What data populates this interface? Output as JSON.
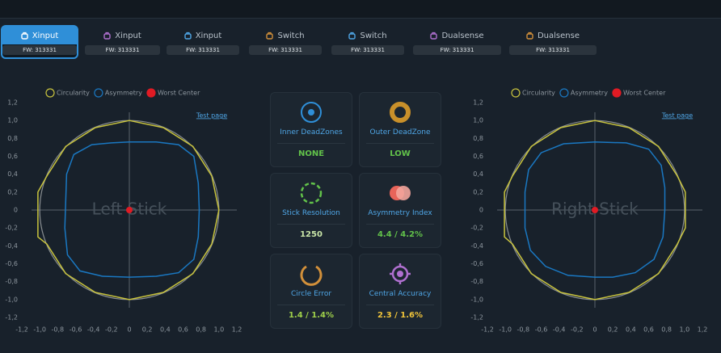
{
  "tabs": [
    {
      "label": "Xinput",
      "fw": "FW: 313331",
      "active": true
    },
    {
      "label": "Xinput",
      "fw": "FW: 313331",
      "active": false
    },
    {
      "label": "Xinput",
      "fw": "FW: 313331",
      "active": false
    },
    {
      "label": "Switch",
      "fw": "FW: 313331",
      "active": false
    },
    {
      "label": "Switch",
      "fw": "FW: 313331",
      "active": false
    },
    {
      "label": "Dualsense",
      "fw": "FW: 313331",
      "active": false
    },
    {
      "label": "Dualsense",
      "fw": "FW: 313331",
      "active": false
    }
  ],
  "cards": [
    {
      "title": "Inner DeadZones",
      "value": "NONE",
      "color": "#62c24a"
    },
    {
      "title": "Outer DeadZone",
      "value": "LOW",
      "color": "#62c24a"
    },
    {
      "title": "Stick Resolution",
      "value": "1250",
      "color": "#c9e6a8"
    },
    {
      "title": "Asymmetry Index",
      "value": "4.4 / 4.2%",
      "color": "#62c24a"
    },
    {
      "title": "Circle Error",
      "value": "1.4 / 1.4%",
      "color": "#9fd04a"
    },
    {
      "title": "Central Accuracy",
      "value": "2.3 / 1.6%",
      "color": "#f0c43a"
    }
  ],
  "chart_data": [
    {
      "type": "line",
      "watermark": "Left Stick",
      "link": "Test page",
      "reference_radius": 1,
      "xlim": [
        -1.2,
        1.2
      ],
      "ylim": [
        -1.2,
        1.2
      ],
      "xticks": [
        {
          "value": -1.2,
          "label": "-1,2"
        },
        {
          "value": -1.0,
          "label": "-1,0"
        },
        {
          "value": -0.8,
          "label": "-0,8"
        },
        {
          "value": -0.6,
          "label": "-0,6"
        },
        {
          "value": -0.4,
          "label": "-0,4"
        },
        {
          "value": -0.2,
          "label": "-0,2"
        },
        0,
        {
          "value": 0.2,
          "label": "0,2"
        },
        {
          "value": 0.4,
          "label": "0,4"
        },
        {
          "value": 0.6,
          "label": "0,6"
        },
        {
          "value": 0.8,
          "label": "0,8"
        },
        {
          "value": 1.0,
          "label": "1,0"
        },
        {
          "value": 1.2,
          "label": "1,2"
        }
      ],
      "yticks": [
        {
          "value": -1.2,
          "label": "-1,2"
        },
        {
          "value": -1.0,
          "label": "-1,0"
        },
        {
          "value": -0.8,
          "label": "-0,8"
        },
        {
          "value": -0.6,
          "label": "-0,6"
        },
        {
          "value": -0.4,
          "label": "-0,4"
        },
        {
          "value": -0.2,
          "label": "-0,2"
        },
        0,
        {
          "value": 0.2,
          "label": "0,2"
        },
        {
          "value": 0.4,
          "label": "0,4"
        },
        {
          "value": 0.6,
          "label": "0,6"
        },
        {
          "value": 0.8,
          "label": "0,8"
        },
        {
          "value": 1.0,
          "label": "1,0"
        },
        {
          "value": 1.2,
          "label": "1,2"
        }
      ],
      "series": [
        {
          "name": "Circularity",
          "color": "#c9c43e",
          "kind": "line",
          "x": [
            0,
            0.38,
            0.71,
            0.92,
            1.0,
            0.92,
            0.71,
            0.38,
            0,
            -0.38,
            -0.71,
            -0.92,
            -1.02,
            -1.02,
            -0.92,
            -0.71,
            -0.38,
            0
          ],
          "values": [
            1,
            0.92,
            0.71,
            0.38,
            0,
            -0.38,
            -0.71,
            -0.92,
            -1,
            -0.92,
            -0.71,
            -0.38,
            -0.3,
            0.2,
            0.38,
            0.71,
            0.92,
            1
          ]
        },
        {
          "name": "Asymmetry",
          "color": "#1a78c2",
          "kind": "line",
          "x": [
            0,
            0.3,
            0.55,
            0.72,
            0.77,
            0.78,
            0.77,
            0.72,
            0.55,
            0.3,
            0,
            -0.3,
            -0.55,
            -0.69,
            -0.72,
            -0.71,
            -0.7,
            -0.62,
            -0.42,
            -0.2,
            0
          ],
          "values": [
            0.76,
            0.76,
            0.73,
            0.6,
            0.3,
            0,
            -0.3,
            -0.55,
            -0.7,
            -0.74,
            -0.75,
            -0.74,
            -0.68,
            -0.5,
            -0.2,
            0.1,
            0.4,
            0.62,
            0.73,
            0.75,
            0.76
          ]
        },
        {
          "name": "Worst Center",
          "color": "#e01b24",
          "kind": "point",
          "x": [
            0
          ],
          "values": [
            0
          ]
        }
      ]
    },
    {
      "type": "line",
      "watermark": "Right Stick",
      "link": "Test page",
      "reference_radius": 1,
      "xlim": [
        -1.2,
        1.2
      ],
      "ylim": [
        -1.2,
        1.2
      ],
      "xticks": [
        {
          "value": -1.2,
          "label": "-1,2"
        },
        {
          "value": -1.0,
          "label": "-1,0"
        },
        {
          "value": -0.8,
          "label": "-0,8"
        },
        {
          "value": -0.6,
          "label": "-0,6"
        },
        {
          "value": -0.4,
          "label": "-0,4"
        },
        {
          "value": -0.2,
          "label": "-0,2"
        },
        0,
        {
          "value": 0.2,
          "label": "0,2"
        },
        {
          "value": 0.4,
          "label": "0,4"
        },
        {
          "value": 0.6,
          "label": "0,6"
        },
        {
          "value": 0.8,
          "label": "0,8"
        },
        {
          "value": 1.0,
          "label": "1,0"
        },
        {
          "value": 1.2,
          "label": "1,2"
        }
      ],
      "yticks": [
        {
          "value": -1.2,
          "label": "-1,2"
        },
        {
          "value": -1.0,
          "label": "-1,0"
        },
        {
          "value": -0.8,
          "label": "-0,8"
        },
        {
          "value": -0.6,
          "label": "-0,6"
        },
        {
          "value": -0.4,
          "label": "-0,4"
        },
        {
          "value": -0.2,
          "label": "-0,2"
        },
        0,
        {
          "value": 0.2,
          "label": "0,2"
        },
        {
          "value": 0.4,
          "label": "0,4"
        },
        {
          "value": 0.6,
          "label": "0,6"
        },
        {
          "value": 0.8,
          "label": "0,8"
        },
        {
          "value": 1.0,
          "label": "1,0"
        },
        {
          "value": 1.2,
          "label": "1,2"
        }
      ],
      "series": [
        {
          "name": "Circularity",
          "color": "#c9c43e",
          "kind": "line",
          "x": [
            0,
            0.38,
            0.71,
            0.92,
            1.01,
            1.01,
            0.92,
            0.71,
            0.38,
            0,
            -0.38,
            -0.71,
            -0.92,
            -1.01,
            -1.01,
            -0.92,
            -0.71,
            -0.38,
            0
          ],
          "values": [
            1,
            0.92,
            0.71,
            0.38,
            0.2,
            -0.2,
            -0.38,
            -0.71,
            -0.92,
            -1,
            -0.92,
            -0.71,
            -0.38,
            -0.3,
            0.2,
            0.38,
            0.71,
            0.92,
            1
          ]
        },
        {
          "name": "Asymmetry",
          "color": "#1a78c2",
          "kind": "line",
          "x": [
            0,
            0.35,
            0.6,
            0.74,
            0.78,
            0.78,
            0.76,
            0.66,
            0.45,
            0.2,
            0,
            -0.3,
            -0.55,
            -0.72,
            -0.78,
            -0.78,
            -0.74,
            -0.6,
            -0.35,
            0
          ],
          "values": [
            0.76,
            0.75,
            0.68,
            0.5,
            0.25,
            0,
            -0.3,
            -0.55,
            -0.7,
            -0.75,
            -0.75,
            -0.73,
            -0.63,
            -0.45,
            -0.2,
            0.2,
            0.45,
            0.64,
            0.74,
            0.76
          ]
        },
        {
          "name": "Worst Center",
          "color": "#e01b24",
          "kind": "point",
          "x": [
            0
          ],
          "values": [
            0
          ]
        }
      ]
    }
  ]
}
